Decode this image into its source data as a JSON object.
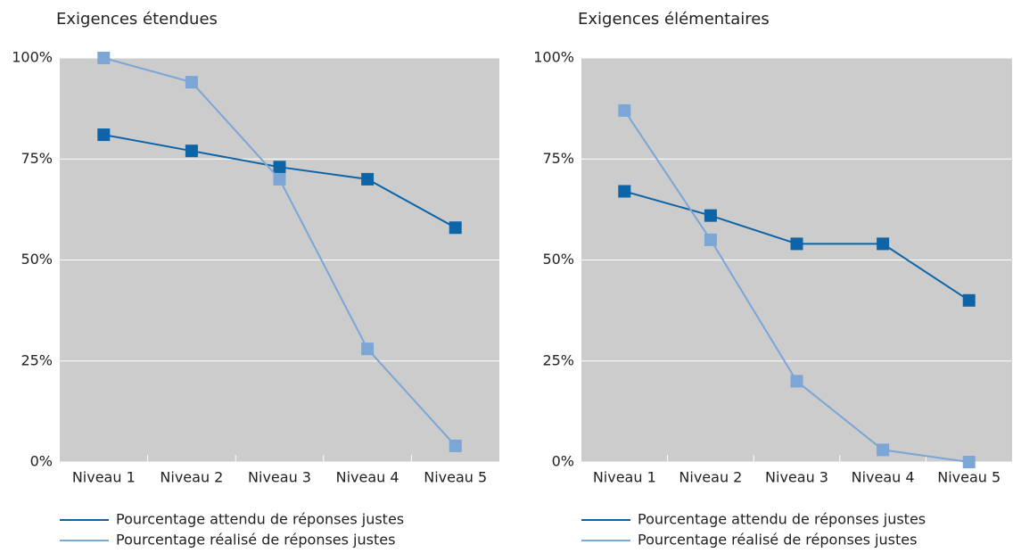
{
  "chart_data": [
    {
      "type": "line",
      "title": "Exigences étendues",
      "categories": [
        "Niveau 1",
        "Niveau 2",
        "Niveau 3",
        "Niveau 4",
        "Niveau 5"
      ],
      "series": [
        {
          "name": "Pourcentage attendu de réponses justes",
          "color": "#0d64a6",
          "values": [
            81,
            77,
            73,
            70,
            58
          ]
        },
        {
          "name": "Pourcentage réalisé de réponses justes",
          "color": "#7ba6d5",
          "values": [
            100,
            94,
            70,
            28,
            4
          ]
        }
      ],
      "ylim": [
        0,
        100
      ],
      "yticks": [
        {
          "value": 0,
          "label": "0%"
        },
        {
          "value": 25,
          "label": "25%"
        },
        {
          "value": 50,
          "label": "50%"
        },
        {
          "value": 75,
          "label": "75%"
        },
        {
          "value": 100,
          "label": "100%"
        }
      ],
      "grid": true
    },
    {
      "type": "line",
      "title": "Exigences élémentaires",
      "categories": [
        "Niveau 1",
        "Niveau 2",
        "Niveau 3",
        "Niveau 4",
        "Niveau 5"
      ],
      "series": [
        {
          "name": "Pourcentage attendu de réponses justes",
          "color": "#0d64a6",
          "values": [
            67,
            61,
            54,
            54,
            40
          ]
        },
        {
          "name": "Pourcentage réalisé de réponses justes",
          "color": "#7ba6d5",
          "values": [
            87,
            55,
            20,
            3,
            0
          ]
        }
      ],
      "ylim": [
        0,
        100
      ],
      "yticks": [
        {
          "value": 0,
          "label": "0%"
        },
        {
          "value": 25,
          "label": "25%"
        },
        {
          "value": 50,
          "label": "50%"
        },
        {
          "value": 75,
          "label": "75%"
        },
        {
          "value": 100,
          "label": "100%"
        }
      ],
      "grid": true
    }
  ]
}
